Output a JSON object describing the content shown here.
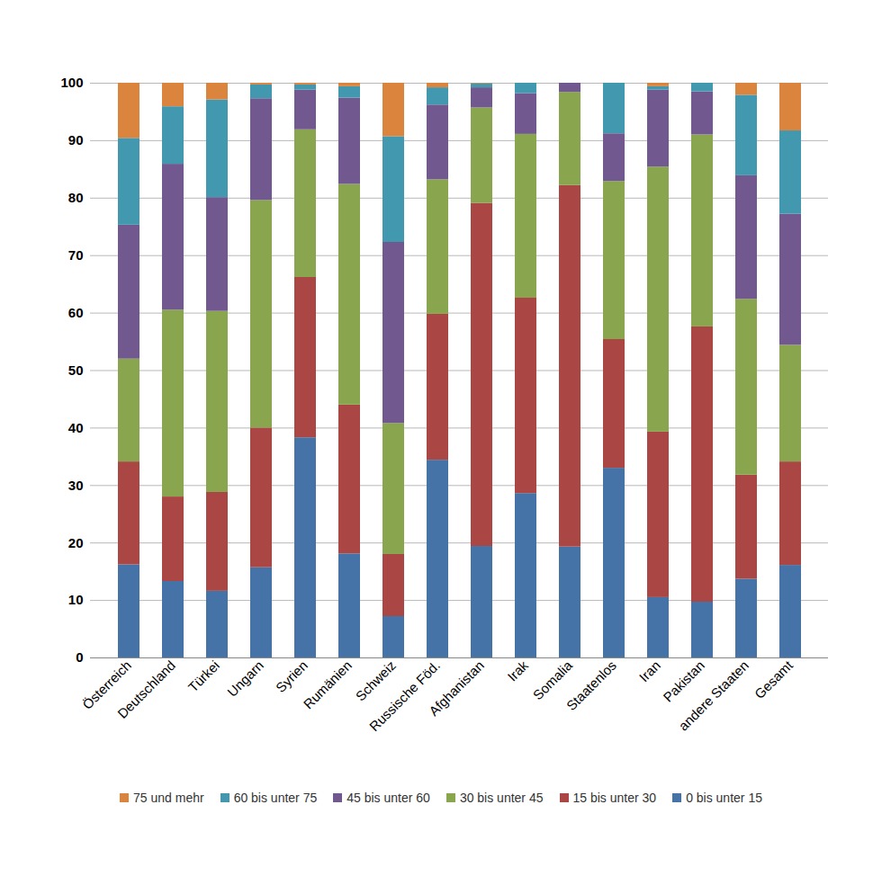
{
  "chart_data": {
    "type": "bar",
    "stacked": true,
    "grid": true,
    "legend": "bottom",
    "categories": [
      "Österreich",
      "Deutschland",
      "Türkei",
      "Ungarn",
      "Syrien",
      "Rumänien",
      "Schweiz",
      "Russische Föd.",
      "Afghanistan",
      "Irak",
      "Somalia",
      "Staatenlos",
      "Iran",
      "Pakistan",
      "andere Staaten",
      "Gesamt"
    ],
    "ylim": [
      0,
      100
    ],
    "yticks": [
      0,
      10,
      20,
      30,
      40,
      50,
      60,
      70,
      80,
      90,
      100
    ],
    "series": [
      {
        "name": "0 bis unter 15",
        "color": "#4572a7",
        "values": [
          16.2,
          13.3,
          11.6,
          15.7,
          38.3,
          18.1,
          7.2,
          34.4,
          19.4,
          28.6,
          19.3,
          33.0,
          10.5,
          9.7,
          13.7,
          16.1
        ]
      },
      {
        "name": "15 bis unter 30",
        "color": "#aa4643",
        "values": [
          17.9,
          14.7,
          17.2,
          24.3,
          27.9,
          25.9,
          10.8,
          25.4,
          59.7,
          34.0,
          62.9,
          22.4,
          28.8,
          47.9,
          18.1,
          18.0
        ]
      },
      {
        "name": "30 bis unter 45",
        "color": "#89a54e",
        "values": [
          17.9,
          32.5,
          31.5,
          39.6,
          25.7,
          38.4,
          22.8,
          23.4,
          16.6,
          28.5,
          16.2,
          27.5,
          46.1,
          33.4,
          30.6,
          20.3
        ]
      },
      {
        "name": "45 bis unter 60",
        "color": "#71588f",
        "values": [
          23.3,
          25.4,
          19.8,
          17.7,
          6.9,
          15.0,
          31.5,
          13.0,
          3.5,
          7.1,
          1.6,
          8.3,
          13.4,
          7.5,
          21.5,
          22.8
        ]
      },
      {
        "name": "60 bis unter 75",
        "color": "#4198af",
        "values": [
          15.1,
          10.0,
          17.0,
          2.4,
          0.9,
          2.0,
          18.4,
          3.0,
          0.7,
          1.8,
          0,
          8.8,
          0.6,
          1.5,
          14.0,
          14.5
        ]
      },
      {
        "name": "75 und mehr",
        "color": "#db843d",
        "values": [
          9.6,
          4.1,
          2.9,
          0.3,
          0.3,
          0.6,
          9.3,
          0.8,
          0.1,
          0,
          0,
          0,
          0.6,
          0,
          2.1,
          8.3
        ]
      }
    ]
  }
}
